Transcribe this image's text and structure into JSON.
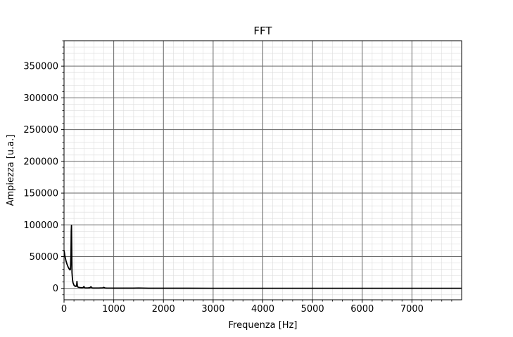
{
  "chart_data": {
    "type": "line",
    "title": "FFT",
    "xlabel": "Frequenza [Hz]",
    "ylabel": "Ampiezza [u.a.]",
    "xlim": [
      0,
      8000
    ],
    "ylim": [
      -18000,
      390000
    ],
    "xticks": [
      0,
      1000,
      2000,
      3000,
      4000,
      5000,
      6000,
      7000
    ],
    "xtick_labels": [
      "0",
      "1000",
      "2000",
      "3000",
      "4000",
      "5000",
      "6000",
      "7000"
    ],
    "yticks": [
      0,
      50000,
      100000,
      150000,
      200000,
      250000,
      300000,
      350000
    ],
    "ytick_labels": [
      "0",
      "50000",
      "100000",
      "150000",
      "200000",
      "250000",
      "300000",
      "350000"
    ],
    "grid": true,
    "minor_grid": true,
    "series": [
      {
        "name": "FFT",
        "color": "#000000",
        "x": [
          0,
          20,
          40,
          60,
          80,
          100,
          120,
          130,
          140,
          145,
          150,
          155,
          160,
          170,
          180,
          200,
          220,
          240,
          255,
          260,
          265,
          270,
          280,
          300,
          330,
          360,
          390,
          400,
          410,
          420,
          440,
          480,
          520,
          540,
          550,
          560,
          580,
          620,
          700,
          780,
          800,
          820,
          860,
          950,
          1000,
          1100,
          1200,
          1300,
          1400,
          1500,
          1700,
          2000,
          2500,
          3000,
          3500,
          4000,
          4500,
          5000,
          5500,
          6000,
          6500,
          7000,
          7500,
          8000
        ],
        "y": [
          60000,
          50000,
          43000,
          38000,
          34000,
          31000,
          29000,
          30000,
          55000,
          90000,
          99000,
          60000,
          25000,
          14000,
          9000,
          5000,
          3500,
          3000,
          6000,
          11000,
          6000,
          3000,
          2000,
          1500,
          1200,
          1000,
          1500,
          3000,
          1500,
          800,
          700,
          700,
          1000,
          2500,
          2000,
          800,
          500,
          500,
          500,
          800,
          1500,
          700,
          400,
          400,
          300,
          300,
          300,
          300,
          300,
          500,
          200,
          150,
          150,
          100,
          100,
          100,
          100,
          100,
          100,
          100,
          100,
          100,
          100,
          100
        ]
      }
    ]
  }
}
